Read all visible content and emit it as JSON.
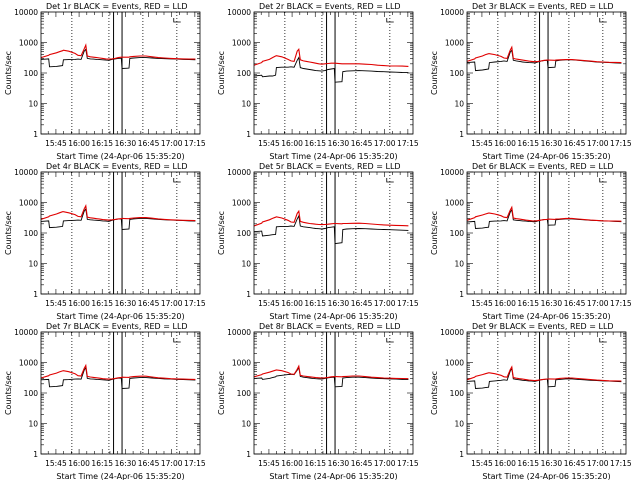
{
  "panel_titles": [
    "Det 1r BLACK = Events, RED = LLD",
    "Det 2r BLACK = Events, RED = LLD",
    "Det 3r BLACK = Events, RED = LLD",
    "Det 4r BLACK = Events, RED = LLD",
    "Det 5r BLACK = Events, RED = LLD",
    "Det 6r BLACK = Events, RED = LLD",
    "Det 7r BLACK = Events, RED = LLD",
    "Det 8r BLACK = Events, RED = LLD",
    "Det 9r BLACK = Events, RED = LLD"
  ],
  "xlabel": "Start Time (24-Apr-06 15:35:20)",
  "ylabel": "Counts/sec",
  "colors": {
    "events": "#000000",
    "lld": "#e00000"
  },
  "chart_data": {
    "type": "line",
    "layout": "3x3 grid",
    "x_tick_labels": [
      "15:45",
      "16:00",
      "16:15",
      "16:30",
      "16:45",
      "17:00",
      "17:15"
    ],
    "x_tick_minutes": [
      9.67,
      24.67,
      39.67,
      54.67,
      69.67,
      84.67,
      99.67
    ],
    "xlim": [
      0,
      103
    ],
    "y_tick_labels": [
      "1",
      "10",
      "100",
      "1000",
      "10000"
    ],
    "ylim": [
      1,
      10000
    ],
    "yscale": "log",
    "vertical_markers": {
      "dotted_minutes": [
        20,
        44,
        66,
        88
      ],
      "solid_minutes": [
        47,
        52.5
      ]
    },
    "x_minutes": [
      0,
      5,
      5.5,
      10,
      12,
      14,
      14.5,
      18,
      22,
      24,
      26,
      28,
      29,
      30,
      32,
      34,
      36,
      38,
      40,
      42,
      44,
      46,
      48,
      50,
      52,
      52.5,
      57,
      57.5,
      60,
      64,
      68,
      72,
      76,
      80,
      84,
      88,
      92,
      96,
      100
    ],
    "panels": [
      {
        "detector": "1r",
        "series": [
          {
            "name": "BLACK = Events",
            "values": [
              280,
              290,
              160,
              165,
              170,
              175,
              270,
              275,
              280,
              285,
              280,
              520,
              600,
              300,
              290,
              285,
              280,
              275,
              270,
              265,
              260,
              280,
              290,
              300,
              305,
              140,
              145,
              300,
              310,
              320,
              320,
              310,
              300,
              295,
              290,
              285,
              280,
              275,
              270
            ]
          },
          {
            "name": "RED = LLD",
            "values": [
              320,
              380,
              400,
              460,
              500,
              540,
              560,
              520,
              440,
              380,
              370,
              620,
              820,
              360,
              340,
              330,
              320,
              310,
              300,
              290,
              285,
              290,
              300,
              320,
              330,
              330,
              330,
              340,
              350,
              360,
              360,
              340,
              320,
              310,
              300,
              295,
              290,
              285,
              285
            ]
          }
        ]
      },
      {
        "detector": "2r",
        "series": [
          {
            "name": "BLACK = Events",
            "values": [
              80,
              85,
              75,
              80,
              80,
              85,
              150,
              155,
              155,
              160,
              155,
              260,
              320,
              150,
              140,
              135,
              130,
              125,
              120,
              118,
              115,
              120,
              130,
              135,
              140,
              50,
              52,
              110,
              115,
              118,
              120,
              118,
              115,
              112,
              110,
              108,
              106,
              104,
              103
            ]
          },
          {
            "name": "RED = LLD",
            "values": [
              180,
              220,
              240,
              280,
              320,
              360,
              370,
              340,
              280,
              250,
              240,
              520,
              600,
              270,
              250,
              240,
              230,
              220,
              210,
              200,
              195,
              200,
              205,
              210,
              210,
              210,
              200,
              200,
              200,
              200,
              200,
              195,
              190,
              180,
              175,
              170,
              170,
              168,
              165
            ]
          }
        ]
      },
      {
        "detector": "3r",
        "series": [
          {
            "name": "BLACK = Events",
            "values": [
              220,
              230,
              120,
              125,
              130,
              135,
              220,
              230,
              240,
              250,
              240,
              480,
              560,
              260,
              250,
              240,
              230,
              225,
              220,
              218,
              215,
              230,
              245,
              255,
              260,
              150,
              155,
              250,
              260,
              270,
              270,
              260,
              250,
              240,
              230,
              225,
              220,
              215,
              210
            ]
          },
          {
            "name": "RED = LLD",
            "values": [
              240,
              290,
              310,
              360,
              400,
              430,
              430,
              400,
              350,
              310,
              300,
              560,
              700,
              300,
              285,
              275,
              265,
              255,
              245,
              240,
              235,
              240,
              250,
              260,
              265,
              265,
              260,
              265,
              270,
              275,
              275,
              265,
              255,
              245,
              235,
              230,
              225,
              222,
              220
            ]
          }
        ]
      },
      {
        "detector": "4r",
        "series": [
          {
            "name": "BLACK = Events",
            "values": [
              240,
              250,
              150,
              155,
              160,
              165,
              250,
              255,
              260,
              265,
              260,
              520,
              620,
              280,
              270,
              265,
              260,
              255,
              250,
              245,
              240,
              260,
              275,
              285,
              290,
              130,
              135,
              280,
              290,
              300,
              300,
              290,
              280,
              270,
              265,
              260,
              255,
              250,
              245
            ]
          },
          {
            "name": "RED = LLD",
            "values": [
              280,
              340,
              360,
              420,
              460,
              500,
              500,
              460,
              400,
              350,
              340,
              620,
              780,
              330,
              315,
              305,
              295,
              285,
              275,
              270,
              265,
              270,
              280,
              290,
              295,
              300,
              295,
              300,
              310,
              320,
              320,
              305,
              290,
              280,
              270,
              265,
              260,
              258,
              255
            ]
          }
        ]
      },
      {
        "detector": "5r",
        "series": [
          {
            "name": "BLACK = Events",
            "values": [
              110,
              115,
              80,
              85,
              88,
              90,
              160,
              165,
              165,
              170,
              165,
              290,
              360,
              170,
              160,
              155,
              150,
              145,
              140,
              138,
              135,
              140,
              150,
              155,
              160,
              45,
              48,
              130,
              135,
              138,
              140,
              138,
              135,
              132,
              130,
              128,
              126,
              124,
              122
            ]
          },
          {
            "name": "RED = LLD",
            "values": [
              170,
              210,
              230,
              270,
              300,
              330,
              340,
              310,
              260,
              230,
              225,
              440,
              520,
              240,
              225,
              215,
              205,
              200,
              195,
              190,
              188,
              190,
              195,
              200,
              205,
              205,
              200,
              205,
              205,
              208,
              210,
              205,
              198,
              190,
              185,
              180,
              178,
              175,
              172
            ]
          }
        ]
      },
      {
        "detector": "6r",
        "series": [
          {
            "name": "BLACK = Events",
            "values": [
              230,
              240,
              140,
              145,
              150,
              155,
              240,
              245,
              250,
              255,
              250,
              480,
              580,
              270,
              260,
              255,
              250,
              245,
              240,
              236,
              232,
              250,
              265,
              275,
              280,
              180,
              185,
              270,
              280,
              290,
              290,
              280,
              270,
              260,
              255,
              250,
              245,
              240,
              235
            ]
          },
          {
            "name": "RED = LLD",
            "values": [
              260,
              320,
              340,
              390,
              420,
              450,
              450,
              420,
              370,
              330,
              320,
              560,
              700,
              310,
              295,
              285,
              275,
              265,
              258,
              252,
              248,
              255,
              265,
              275,
              280,
              285,
              280,
              285,
              290,
              300,
              300,
              288,
              275,
              265,
              258,
              252,
              248,
              246,
              244
            ]
          }
        ]
      },
      {
        "detector": "7r",
        "series": [
          {
            "name": "BLACK = Events",
            "values": [
              270,
              280,
              160,
              165,
              170,
              175,
              270,
              275,
              285,
              290,
              285,
              560,
              680,
              300,
              290,
              285,
              280,
              275,
              270,
              265,
              260,
              280,
              295,
              305,
              310,
              140,
              145,
              300,
              310,
              320,
              320,
              310,
              300,
              290,
              285,
              280,
              275,
              270,
              265
            ]
          },
          {
            "name": "RED = LLD",
            "values": [
              310,
              370,
              390,
              450,
              490,
              530,
              540,
              500,
              430,
              370,
              360,
              640,
              800,
              350,
              335,
              325,
              315,
              305,
              295,
              290,
              285,
              290,
              300,
              315,
              325,
              330,
              325,
              335,
              345,
              355,
              355,
              335,
              315,
              305,
              295,
              290,
              285,
              282,
              280
            ]
          }
        ]
      },
      {
        "detector": "8r",
        "series": [
          {
            "name": "BLACK = Events",
            "values": [
              300,
              310,
              280,
              300,
              320,
              340,
              360,
              380,
              400,
              410,
              400,
              560,
              680,
              350,
              330,
              320,
              310,
              300,
              295,
              290,
              285,
              300,
              315,
              325,
              330,
              160,
              165,
              310,
              320,
              330,
              330,
              320,
              310,
              300,
              295,
              290,
              285,
              280,
              275
            ]
          },
          {
            "name": "RED = LLD",
            "values": [
              340,
              400,
              420,
              480,
              520,
              560,
              570,
              540,
              470,
              420,
              410,
              600,
              760,
              380,
              360,
              350,
              340,
              330,
              320,
              315,
              310,
              315,
              325,
              340,
              345,
              345,
              340,
              345,
              350,
              360,
              360,
              345,
              330,
              320,
              310,
              305,
              300,
              298,
              295
            ]
          }
        ]
      },
      {
        "detector": "9r",
        "series": [
          {
            "name": "BLACK = Events",
            "values": [
              240,
              250,
              140,
              145,
              150,
              155,
              240,
              250,
              260,
              270,
              260,
              520,
              640,
              290,
              280,
              270,
              260,
              255,
              250,
              245,
              240,
              255,
              270,
              280,
              285,
              160,
              165,
              270,
              280,
              290,
              290,
              280,
              270,
              260,
              255,
              250,
              245,
              240,
              235
            ]
          },
          {
            "name": "RED = LLD",
            "values": [
              270,
              330,
              350,
              400,
              430,
              460,
              460,
              430,
              380,
              340,
              330,
              580,
              720,
              320,
              305,
              295,
              285,
              275,
              265,
              260,
              255,
              262,
              272,
              282,
              288,
              290,
              285,
              290,
              300,
              310,
              310,
              298,
              285,
              275,
              265,
              258,
              252,
              250,
              248
            ]
          }
        ]
      }
    ]
  }
}
